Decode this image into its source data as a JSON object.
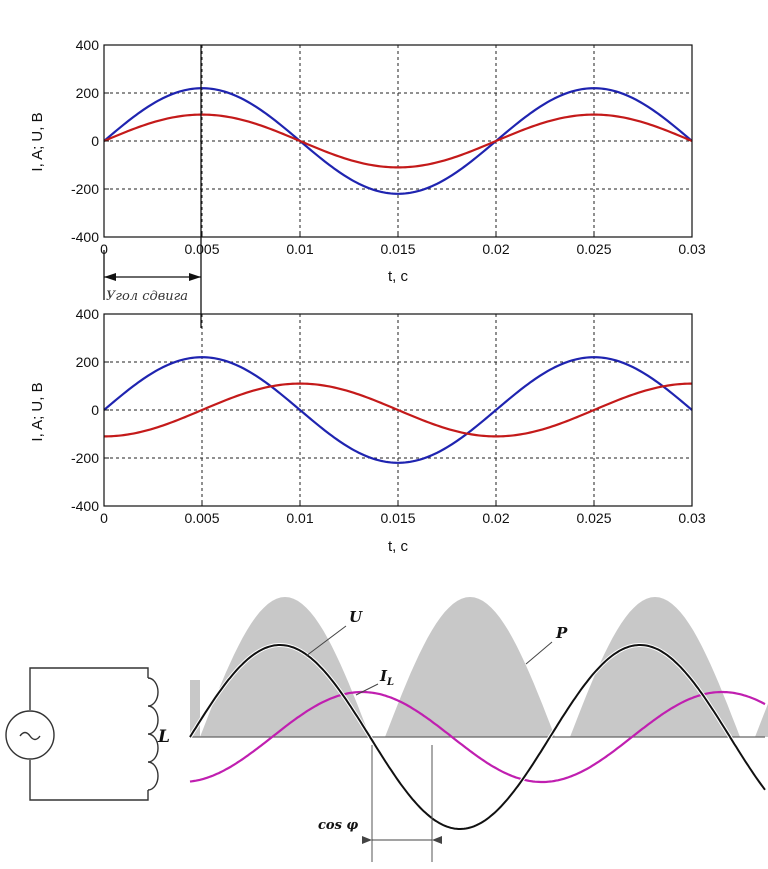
{
  "chart_data": [
    {
      "type": "line",
      "xlabel": "t, c",
      "ylabel": "I, A; U, B",
      "xlim": [
        0,
        0.03
      ],
      "ylim": [
        -400,
        400
      ],
      "xticks": [
        "0",
        "0.005",
        "0.01",
        "0.015",
        "0.02",
        "0.025",
        "0.03"
      ],
      "yticks": [
        "400",
        "200",
        "0",
        "-200",
        "-400"
      ],
      "grid": true,
      "series": [
        {
          "color": "#1f24b0",
          "amplitude": 220,
          "frequency_hz": 50,
          "phase_deg": 0
        },
        {
          "color": "#c41a1a",
          "amplitude": 110,
          "frequency_hz": 50,
          "phase_deg": 0
        }
      ],
      "annotation": "Угол сдвига"
    },
    {
      "type": "line",
      "xlabel": "t, c",
      "ylabel": "I, A; U, B",
      "xlim": [
        0,
        0.03
      ],
      "ylim": [
        -400,
        400
      ],
      "xticks": [
        "0",
        "0.005",
        "0.01",
        "0.015",
        "0.02",
        "0.025",
        "0.03"
      ],
      "yticks": [
        "400",
        "200",
        "0",
        "-200",
        "-400"
      ],
      "grid": true,
      "series": [
        {
          "color": "#1f24b0",
          "amplitude": 220,
          "frequency_hz": 50,
          "phase_deg": 0
        },
        {
          "color": "#c41a1a",
          "amplitude": 110,
          "frequency_hz": 50,
          "phase_deg": -90
        }
      ]
    }
  ],
  "diagram": {
    "labels": {
      "u": "U",
      "il": "I",
      "il_sub": "L",
      "p": "P",
      "cos": "cos φ",
      "inductor": "L"
    },
    "colors": {
      "voltage": "#111111",
      "current": "#c01fb0",
      "power": "#c8c8c8"
    }
  }
}
